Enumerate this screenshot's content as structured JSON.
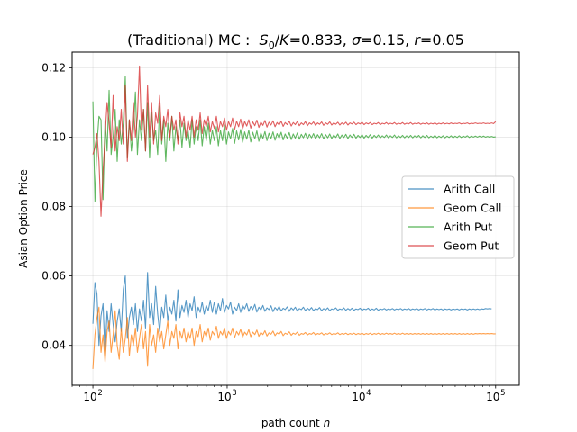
{
  "chart_data": {
    "type": "line",
    "title": {
      "prefix": "(Traditional) MC :  ",
      "s": "S",
      "s_sub": "0",
      "slash": "/",
      "k": "K",
      "k_val": "=0.833, ",
      "sigma": "σ",
      "sigma_val": "=0.15, ",
      "r": "r",
      "r_val": "=0.05"
    },
    "xlabel": {
      "text": "path count ",
      "var": "n"
    },
    "ylabel": "Asian Option Price",
    "xscale": "log",
    "xlim": [
      70,
      150000
    ],
    "ylim": [
      0.0285,
      0.1245
    ],
    "xticks": [
      {
        "base": "10",
        "exp": "2",
        "value": 100
      },
      {
        "base": "10",
        "exp": "3",
        "value": 1000
      },
      {
        "base": "10",
        "exp": "4",
        "value": 10000
      },
      {
        "base": "10",
        "exp": "5",
        "value": 100000
      }
    ],
    "yticks": [
      {
        "label": "0.04",
        "value": 0.04
      },
      {
        "label": "0.06",
        "value": 0.06
      },
      {
        "label": "0.08",
        "value": 0.08
      },
      {
        "label": "0.10",
        "value": 0.1
      },
      {
        "label": "0.12",
        "value": 0.12
      }
    ],
    "grid": true,
    "legend_position": "center-right",
    "n_points": 200,
    "x_range": [
      100,
      100000
    ],
    "series": [
      {
        "name": "Arith Call",
        "color": "#1f77b4",
        "values": [
          0.0462,
          0.0581,
          0.0548,
          0.04,
          0.0485,
          0.052,
          0.037,
          0.05,
          0.044,
          0.052,
          0.046,
          0.041,
          0.047,
          0.0505,
          0.044,
          0.0561,
          0.06,
          0.042,
          0.048,
          0.051,
          0.046,
          0.052,
          0.044,
          0.0505,
          0.047,
          0.053,
          0.045,
          0.061,
          0.048,
          0.052,
          0.046,
          0.057,
          0.049,
          0.044,
          0.051,
          0.048,
          0.0545,
          0.047,
          0.051,
          0.049,
          0.053,
          0.047,
          0.056,
          0.048,
          0.0515,
          0.0495,
          0.053,
          0.048,
          0.052,
          0.05,
          0.054,
          0.048,
          0.051,
          0.0495,
          0.0525,
          0.049,
          0.0515,
          0.05,
          0.053,
          0.0495,
          0.0525,
          0.049,
          0.052,
          0.05,
          0.0535,
          0.0495,
          0.0515,
          0.0505,
          0.0525,
          0.049,
          0.051,
          0.05,
          0.052,
          0.0495,
          0.0515,
          0.0505,
          0.052,
          0.0498,
          0.0512,
          0.0503,
          0.0518,
          0.0496,
          0.051,
          0.0502,
          0.0515,
          0.0498,
          0.0508,
          0.0503,
          0.0514,
          0.0497,
          0.0509,
          0.0502,
          0.0512,
          0.0499,
          0.0507,
          0.0503,
          0.0511,
          0.0498,
          0.0508,
          0.0502,
          0.051,
          0.0499,
          0.0506,
          0.0503,
          0.051,
          0.05,
          0.0507,
          0.0502,
          0.0509,
          0.05,
          0.0506,
          0.0503,
          0.0509,
          0.05,
          0.0506,
          0.0502,
          0.0508,
          0.05,
          0.0505,
          0.0503,
          0.0508,
          0.0501,
          0.0505,
          0.0503,
          0.0508,
          0.0501,
          0.0506,
          0.0502,
          0.0507,
          0.0501,
          0.0505,
          0.0503,
          0.0507,
          0.0501,
          0.0505,
          0.0503,
          0.0507,
          0.0501,
          0.0505,
          0.0502,
          0.0507,
          0.0501,
          0.0505,
          0.0503,
          0.0506,
          0.0502,
          0.0505,
          0.0503,
          0.0506,
          0.0502,
          0.0505,
          0.0503,
          0.0506,
          0.0502,
          0.0505,
          0.0503,
          0.0506,
          0.0502,
          0.0505,
          0.0503,
          0.0506,
          0.0502,
          0.0505,
          0.0503,
          0.0506,
          0.0502,
          0.0505,
          0.0503,
          0.0506,
          0.0502,
          0.0505,
          0.0503,
          0.0505,
          0.0502,
          0.0505,
          0.0503,
          0.0505,
          0.0502,
          0.0505,
          0.0503,
          0.0505,
          0.0502,
          0.0505,
          0.0503,
          0.0505,
          0.0502,
          0.0505,
          0.0503,
          0.0505,
          0.0503,
          0.0505,
          0.0503,
          0.0505,
          0.0504,
          0.0506,
          0.0505,
          0.0506,
          0.0505
        ]
      },
      {
        "name": "Geom Call",
        "color": "#ff7f0e",
        "values": [
          0.0332,
          0.043,
          0.048,
          0.051,
          0.038,
          0.043,
          0.0352,
          0.044,
          0.047,
          0.038,
          0.043,
          0.05,
          0.04,
          0.036,
          0.045,
          0.038,
          0.042,
          0.048,
          0.037,
          0.043,
          0.04,
          0.045,
          0.038,
          0.042,
          0.046,
          0.039,
          0.044,
          0.034,
          0.046,
          0.04,
          0.043,
          0.038,
          0.045,
          0.041,
          0.044,
          0.039,
          0.043,
          0.047,
          0.04,
          0.044,
          0.042,
          0.046,
          0.039,
          0.044,
          0.042,
          0.045,
          0.041,
          0.044,
          0.042,
          0.045,
          0.04,
          0.044,
          0.0425,
          0.046,
          0.041,
          0.044,
          0.0425,
          0.045,
          0.0415,
          0.044,
          0.043,
          0.0455,
          0.042,
          0.044,
          0.043,
          0.045,
          0.042,
          0.044,
          0.043,
          0.045,
          0.0422,
          0.044,
          0.043,
          0.0446,
          0.0424,
          0.0438,
          0.043,
          0.0445,
          0.0425,
          0.0438,
          0.0431,
          0.0444,
          0.0426,
          0.0437,
          0.0431,
          0.0442,
          0.0427,
          0.0436,
          0.0432,
          0.0441,
          0.0428,
          0.0436,
          0.0432,
          0.044,
          0.0428,
          0.0435,
          0.0432,
          0.0439,
          0.0429,
          0.0435,
          0.0432,
          0.0438,
          0.0429,
          0.0434,
          0.0432,
          0.0437,
          0.043,
          0.0434,
          0.0432,
          0.0437,
          0.043,
          0.0434,
          0.0432,
          0.0436,
          0.043,
          0.0434,
          0.0432,
          0.0436,
          0.0431,
          0.0434,
          0.0432,
          0.0436,
          0.0431,
          0.0434,
          0.0432,
          0.0435,
          0.0431,
          0.0434,
          0.0432,
          0.0435,
          0.0431,
          0.0434,
          0.0432,
          0.0435,
          0.0431,
          0.0434,
          0.0432,
          0.0435,
          0.0431,
          0.0434,
          0.0432,
          0.0435,
          0.0431,
          0.0434,
          0.0432,
          0.0435,
          0.0432,
          0.0434,
          0.0432,
          0.0435,
          0.0432,
          0.0434,
          0.0432,
          0.0435,
          0.0432,
          0.0434,
          0.0432,
          0.0434,
          0.0432,
          0.0434,
          0.0432,
          0.0434,
          0.0432,
          0.0434,
          0.0432,
          0.0434,
          0.0432,
          0.0434,
          0.0432,
          0.0434,
          0.0432,
          0.0434,
          0.0432,
          0.0434,
          0.0432,
          0.0434,
          0.0432,
          0.0434,
          0.0432,
          0.0434,
          0.0432,
          0.0434,
          0.0432,
          0.0434,
          0.0432,
          0.0434,
          0.0432,
          0.0434,
          0.0432,
          0.0434,
          0.0433,
          0.0434,
          0.0433,
          0.0434,
          0.0433,
          0.0434,
          0.0433,
          0.0434,
          0.0433,
          0.0433
        ]
      },
      {
        "name": "Arith Put",
        "color": "#2ca02c",
        "values": [
          0.1103,
          0.0815,
          0.098,
          0.106,
          0.105,
          0.082,
          0.105,
          0.096,
          0.1135,
          0.095,
          0.1,
          0.108,
          0.093,
          0.105,
          0.098,
          0.104,
          0.1175,
          0.094,
          0.105,
          0.096,
          0.102,
          0.113,
          0.095,
          0.105,
          0.099,
          0.108,
          0.096,
          0.11,
          0.094,
          0.107,
          0.099,
          0.102,
          0.095,
          0.109,
          0.098,
          0.105,
          0.093,
          0.104,
          0.099,
          0.106,
          0.096,
          0.103,
          0.099,
          0.105,
          0.097,
          0.104,
          0.099,
          0.102,
          0.097,
          0.105,
          0.098,
          0.103,
          0.099,
          0.105,
          0.0975,
          0.103,
          0.099,
          0.104,
          0.098,
          0.102,
          0.099,
          0.103,
          0.0975,
          0.102,
          0.099,
          0.1035,
          0.098,
          0.1015,
          0.0995,
          0.1025,
          0.0982,
          0.1018,
          0.0992,
          0.1022,
          0.0985,
          0.1015,
          0.0994,
          0.102,
          0.0986,
          0.1014,
          0.0995,
          0.1018,
          0.0988,
          0.1012,
          0.0996,
          0.1016,
          0.099,
          0.1011,
          0.0996,
          0.1015,
          0.0991,
          0.101,
          0.0997,
          0.1014,
          0.0992,
          0.1009,
          0.0997,
          0.1013,
          0.0993,
          0.1009,
          0.0997,
          0.1012,
          0.0994,
          0.1008,
          0.0998,
          0.1011,
          0.0994,
          0.1008,
          0.0998,
          0.101,
          0.0995,
          0.1007,
          0.0998,
          0.101,
          0.0995,
          0.1007,
          0.0998,
          0.1009,
          0.0996,
          0.1006,
          0.0999,
          0.1009,
          0.0996,
          0.1006,
          0.0999,
          0.1008,
          0.0996,
          0.1006,
          0.0999,
          0.1008,
          0.0997,
          0.1005,
          0.0999,
          0.1007,
          0.0997,
          0.1005,
          0.0999,
          0.1007,
          0.0997,
          0.1005,
          0.0999,
          0.1006,
          0.0998,
          0.1004,
          0.0999,
          0.1006,
          0.0998,
          0.1004,
          0.0999,
          0.1006,
          0.0998,
          0.1004,
          0.0999,
          0.1005,
          0.0998,
          0.1004,
          0.0999,
          0.1005,
          0.0998,
          0.1004,
          0.0999,
          0.1005,
          0.0998,
          0.1004,
          0.0999,
          0.1005,
          0.0998,
          0.1003,
          0.0999,
          0.1005,
          0.0998,
          0.1003,
          0.0999,
          0.1004,
          0.0998,
          0.1003,
          0.0999,
          0.1004,
          0.0998,
          0.1003,
          0.0999,
          0.1004,
          0.0999,
          0.1003,
          0.1,
          0.1004,
          0.0999,
          0.1003,
          0.1,
          0.1003,
          0.1,
          0.1003,
          0.1,
          0.1003,
          0.1,
          0.1002,
          0.1,
          0.1002,
          0.1,
          0.1001
        ]
      },
      {
        "name": "Geom Put",
        "color": "#d62728",
        "values": [
          0.095,
          0.097,
          0.101,
          0.093,
          0.0772,
          0.09,
          0.1,
          0.11,
          0.104,
          0.097,
          0.112,
          0.096,
          0.103,
          0.099,
          0.108,
          0.098,
          0.115,
          0.093,
          0.105,
          0.099,
          0.11,
          0.1,
          0.106,
          0.1205,
          0.102,
          0.108,
          0.096,
          0.115,
          0.1,
          0.11,
          0.098,
          0.107,
          0.104,
          0.112,
          0.099,
          0.106,
          0.103,
          0.108,
          0.1,
          0.106,
          0.102,
          0.105,
          0.098,
          0.107,
          0.103,
          0.106,
          0.1,
          0.105,
          0.102,
          0.106,
          0.1,
          0.105,
          0.102,
          0.107,
          0.101,
          0.105,
          0.103,
          0.106,
          0.1015,
          0.1045,
          0.1025,
          0.106,
          0.1015,
          0.1045,
          0.103,
          0.1055,
          0.102,
          0.1045,
          0.103,
          0.1055,
          0.1022,
          0.1046,
          0.103,
          0.1052,
          0.1024,
          0.1045,
          0.1032,
          0.105,
          0.1026,
          0.1044,
          0.1033,
          0.1049,
          0.1028,
          0.1043,
          0.1034,
          0.1048,
          0.1029,
          0.1043,
          0.1035,
          0.1047,
          0.103,
          0.1042,
          0.1035,
          0.1046,
          0.1031,
          0.1042,
          0.1036,
          0.1046,
          0.1032,
          0.1042,
          0.1036,
          0.1045,
          0.1033,
          0.1041,
          0.1036,
          0.1045,
          0.1033,
          0.1041,
          0.1037,
          0.1044,
          0.1034,
          0.1041,
          0.1037,
          0.1044,
          0.1034,
          0.1041,
          0.1037,
          0.1044,
          0.1035,
          0.1041,
          0.1037,
          0.1043,
          0.1035,
          0.1041,
          0.1037,
          0.1043,
          0.1035,
          0.1041,
          0.1038,
          0.1043,
          0.1036,
          0.1041,
          0.1038,
          0.1043,
          0.1036,
          0.1041,
          0.1038,
          0.1042,
          0.1036,
          0.104,
          0.1038,
          0.1042,
          0.1036,
          0.104,
          0.1038,
          0.1042,
          0.1037,
          0.104,
          0.1038,
          0.1042,
          0.1037,
          0.104,
          0.1038,
          0.1042,
          0.1037,
          0.104,
          0.1038,
          0.1042,
          0.1037,
          0.104,
          0.1038,
          0.1041,
          0.1037,
          0.104,
          0.1038,
          0.1041,
          0.1037,
          0.104,
          0.1038,
          0.1041,
          0.1037,
          0.104,
          0.1038,
          0.1041,
          0.1038,
          0.104,
          0.1038,
          0.1041,
          0.1038,
          0.104,
          0.1039,
          0.1041,
          0.1038,
          0.104,
          0.1039,
          0.1041,
          0.1038,
          0.104,
          0.1039,
          0.1041,
          0.1039,
          0.104,
          0.1039,
          0.1041,
          0.1039,
          0.104,
          0.1039,
          0.1041,
          0.1039,
          0.1045
        ]
      }
    ]
  }
}
